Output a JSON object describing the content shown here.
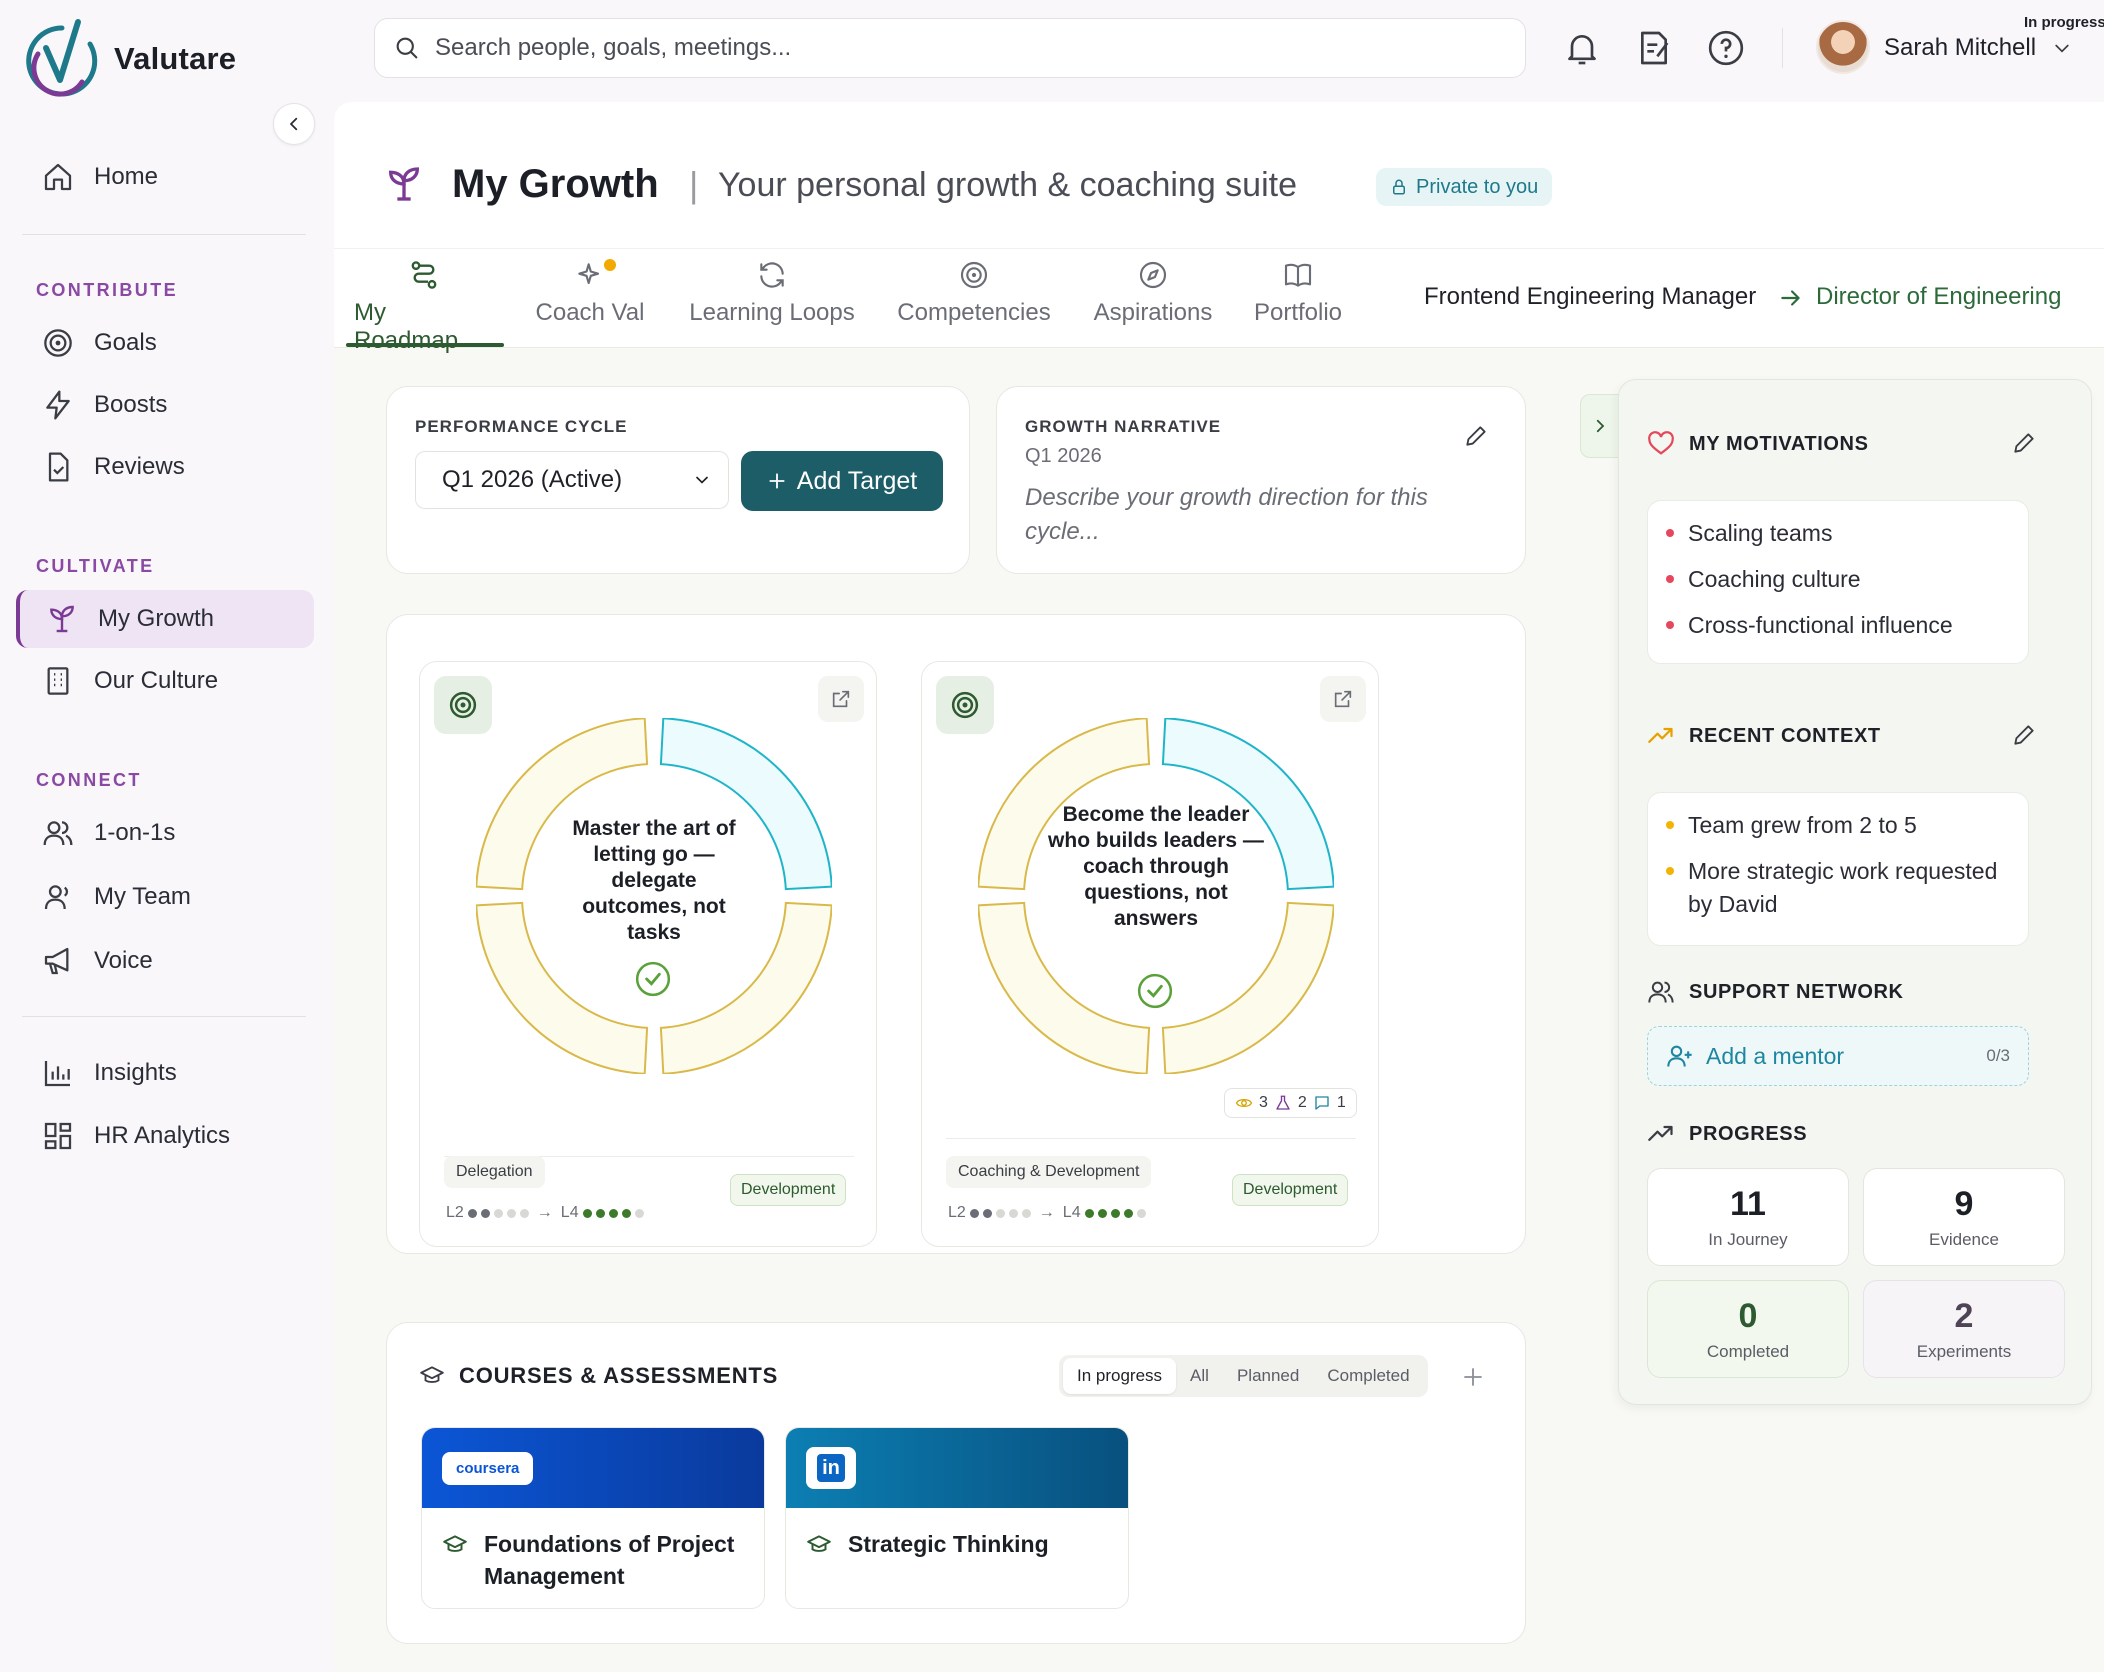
{
  "app": {
    "name": "Valutare"
  },
  "sidebar": {
    "home": "Home",
    "sections": {
      "contribute": "CONTRIBUTE",
      "cultivate": "CULTIVATE",
      "connect": "CONNECT"
    },
    "items": {
      "goals": "Goals",
      "boosts": "Boosts",
      "reviews": "Reviews",
      "my_growth": "My Growth",
      "our_culture": "Our Culture",
      "one_on_ones": "1-on-1s",
      "my_team": "My Team",
      "voice": "Voice",
      "insights": "Insights",
      "hr_analytics": "HR Analytics"
    }
  },
  "topbar": {
    "search_placeholder": "Search people, goals, meetings...",
    "user_name": "Sarah Mitchell",
    "status_tag": "In progress"
  },
  "page": {
    "title": "My Growth",
    "separator": "|",
    "subtitle": "Your personal growth & coaching suite",
    "privacy_badge": "Private to you"
  },
  "tabs": [
    "My Roadmap",
    "Coach Val",
    "Learning Loops",
    "Competencies",
    "Aspirations",
    "Portfolio"
  ],
  "career_path": {
    "from": "Frontend Engineering Manager",
    "to": "Director of Engineering"
  },
  "performance_cycle": {
    "label": "PERFORMANCE CYCLE",
    "selected": "Q1 2026 (Active)",
    "add_button": "Add Target"
  },
  "growth_narrative": {
    "label": "GROWTH NARRATIVE",
    "period": "Q1 2026",
    "placeholder": "Describe your growth direction for this cycle..."
  },
  "goals": [
    {
      "text": "Master the art of letting go — delegate outcomes, not tasks",
      "competency": "Delegation",
      "type": "Development",
      "from_level": "L2",
      "to_level": "L4",
      "progress": 0.25
    },
    {
      "text": "Become the leader who builds leaders — coach through questions, not answers",
      "competency": "Coaching & Development",
      "type": "Development",
      "from_level": "L2",
      "to_level": "L4",
      "progress": 0.25,
      "stats": {
        "views": "3",
        "experiments": "2",
        "comments": "1"
      }
    }
  ],
  "courses": {
    "title": "COURSES & ASSESSMENTS",
    "filters": [
      "In progress",
      "All",
      "Planned",
      "Completed"
    ],
    "active_filter": "In progress",
    "items": [
      {
        "provider": "coursera",
        "title": "Foundations of Project Management"
      },
      {
        "provider": "in",
        "title": "Strategic Thinking"
      }
    ]
  },
  "motivations": {
    "title": "MY MOTIVATIONS",
    "items": [
      "Scaling teams",
      "Coaching culture",
      "Cross-functional influence"
    ]
  },
  "recent_context": {
    "title": "RECENT CONTEXT",
    "items": [
      "Team grew from 2 to 5",
      "More strategic work requested by David"
    ]
  },
  "support_network": {
    "title": "SUPPORT NETWORK",
    "add_mentor": "Add a mentor",
    "count": "0/3"
  },
  "progress": {
    "title": "PROGRESS",
    "stats": [
      {
        "value": "11",
        "label": "In Journey"
      },
      {
        "value": "9",
        "label": "Evidence"
      },
      {
        "value": "0",
        "label": "Completed"
      },
      {
        "value": "2",
        "label": "Experiments"
      }
    ]
  },
  "colors": {
    "brand": "#7b3a94",
    "primary": "#1d5d68",
    "accent_green": "#2d5a30",
    "ring_teal": "#1fb5c9",
    "ring_gold": "#d9b94a"
  }
}
